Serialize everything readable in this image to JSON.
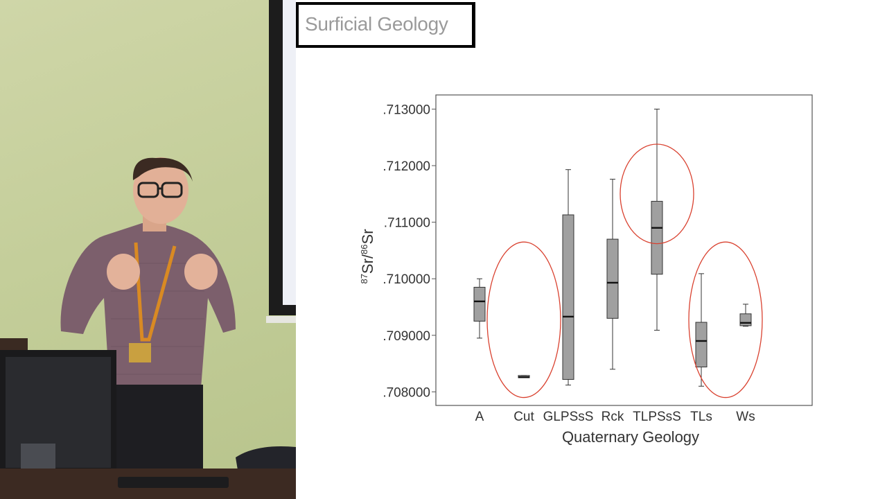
{
  "slide": {
    "title": "Surficial Geology"
  },
  "chart_data": {
    "type": "boxplot",
    "title": "",
    "xlabel": "Quaternary Geology",
    "ylabel_parts": {
      "sup1": "87",
      "main1": "Sr/",
      "sup2": "86",
      "main2": "Sr"
    },
    "ylim": [
      0.70776,
      0.71325
    ],
    "yticks": [
      {
        "value": 0.708,
        "label": ".708000"
      },
      {
        "value": 0.709,
        "label": ".709000"
      },
      {
        "value": 0.71,
        "label": ".710000"
      },
      {
        "value": 0.711,
        "label": ".711000"
      },
      {
        "value": 0.712,
        "label": ".712000"
      },
      {
        "value": 0.713,
        "label": ".713000"
      }
    ],
    "grid": false,
    "legend": "none",
    "box_color": "#a0a0a0",
    "highlight_color": "#d9412f",
    "categories": [
      "A",
      "Cut",
      "GLPSsS",
      "Rck",
      "TLPSsS",
      "TLs",
      "Ws"
    ],
    "boxes": [
      {
        "min": 0.70895,
        "q1": 0.70925,
        "median": 0.7096,
        "q3": 0.70985,
        "max": 0.71
      },
      {
        "min": 0.70825,
        "q1": 0.70825,
        "median": 0.70826,
        "q3": 0.70829,
        "max": 0.70829
      },
      {
        "min": 0.70812,
        "q1": 0.70822,
        "median": 0.70933,
        "q3": 0.71113,
        "max": 0.71193
      },
      {
        "min": 0.7084,
        "q1": 0.7093,
        "median": 0.70993,
        "q3": 0.7107,
        "max": 0.71176
      },
      {
        "min": 0.70909,
        "q1": 0.71008,
        "median": 0.7109,
        "q3": 0.71137,
        "max": 0.713
      },
      {
        "min": 0.7081,
        "q1": 0.70844,
        "median": 0.7089,
        "q3": 0.70923,
        "max": 0.71009
      },
      {
        "min": 0.70916,
        "q1": 0.70917,
        "median": 0.70922,
        "q3": 0.70938,
        "max": 0.70955
      }
    ],
    "highlighted": [
      {
        "category": "Cut",
        "from": 0.7079,
        "to": 0.71065
      },
      {
        "category": "TLPSsS",
        "from": 0.71062,
        "to": 0.71238
      },
      {
        "category": "TLs",
        "from": 0.7079,
        "to": 0.71065,
        "span_to": "Ws"
      }
    ]
  }
}
